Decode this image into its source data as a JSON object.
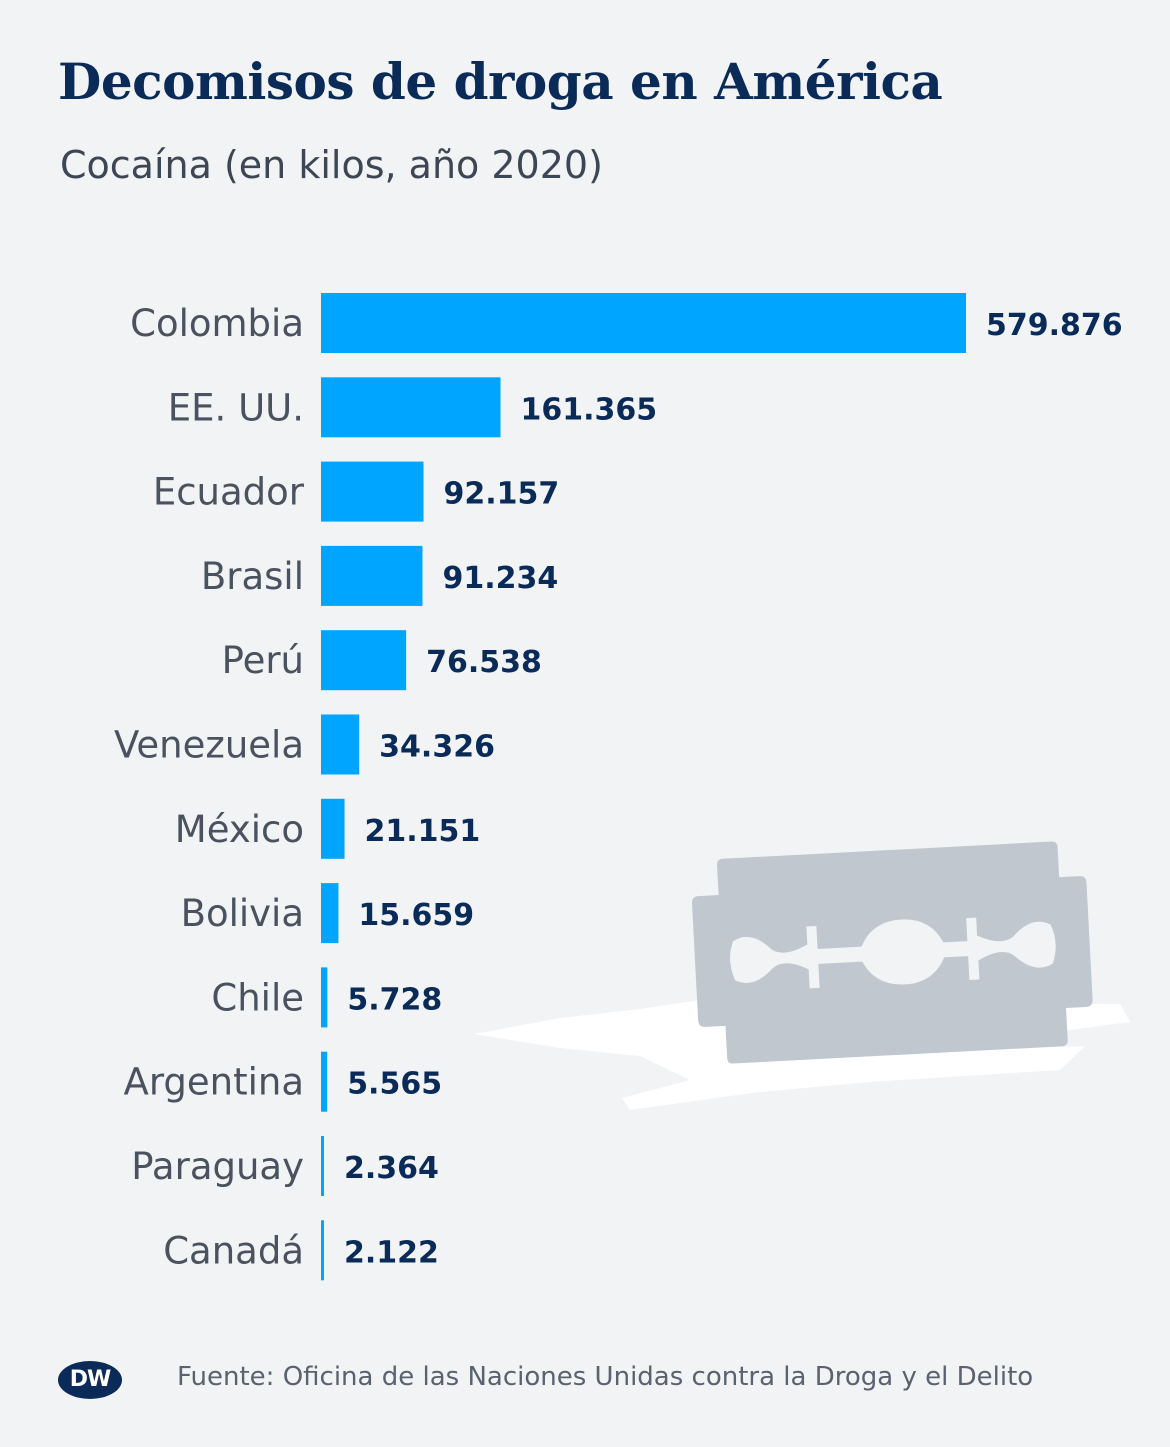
{
  "header": {
    "title": "Decomisos de droga en América",
    "subtitle": "Cocaína (en kilos, año 2020)"
  },
  "footer": {
    "logo_text": "DW",
    "source": "Fuente: Oficina de las Naciones Unidas contra la Droga y el Delito"
  },
  "colors": {
    "bar": "#00a5ff",
    "background": "#f1f3f5",
    "title": "#0a2a57",
    "blade": "#c1c7ce"
  },
  "illustration": {
    "icon": "razor-blade-icon"
  },
  "chart_data": {
    "type": "bar",
    "orientation": "horizontal",
    "title": "Decomisos de droga en América",
    "subtitle": "Cocaína (en kilos, año 2020)",
    "categories": [
      "Colombia",
      "EE. UU.",
      "Ecuador",
      "Brasil",
      "Perú",
      "Venezuela",
      "México",
      "Bolivia",
      "Chile",
      "Argentina",
      "Paraguay",
      "Canadá"
    ],
    "values": [
      579876,
      161365,
      92157,
      91234,
      76538,
      34326,
      21151,
      15659,
      5728,
      5565,
      2364,
      2122
    ],
    "value_labels": [
      "579.876",
      "161.365",
      "92.157",
      "91.234",
      "76.538",
      "34.326",
      "21.151",
      "15.659",
      "5.728",
      "5.565",
      "2.364",
      "2.122"
    ],
    "xlim": [
      0,
      579876
    ],
    "grid": false,
    "legend": "none"
  }
}
